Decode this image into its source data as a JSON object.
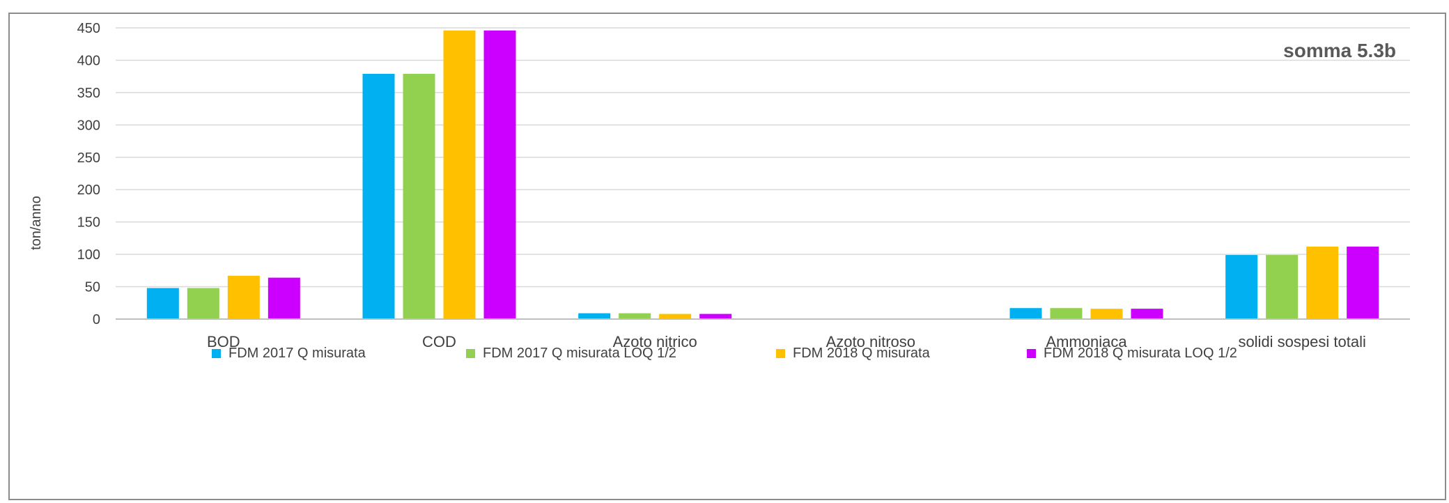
{
  "chart_data": {
    "type": "bar",
    "title": "",
    "xlabel": "",
    "ylabel": "ton/anno",
    "annotation": "somma 5.3b",
    "ylim": [
      0,
      450
    ],
    "yticks": [
      0,
      50,
      100,
      150,
      200,
      250,
      300,
      350,
      400,
      450
    ],
    "grid": true,
    "legend_position": "bottom",
    "categories": [
      "BOD",
      "COD",
      "Azoto nitrico",
      "Azoto nitroso",
      "Ammoniaca",
      "solidi sospesi totali"
    ],
    "series": [
      {
        "name": "FDM 2017 Q misurata",
        "color": "#00b0f0",
        "values": [
          48,
          379,
          9,
          0,
          17,
          99
        ]
      },
      {
        "name": "FDM 2017 Q misurata LOQ 1/2",
        "color": "#92d050",
        "values": [
          48,
          379,
          9,
          0,
          17,
          99
        ]
      },
      {
        "name": "FDM 2018 Q misurata",
        "color": "#ffc000",
        "values": [
          67,
          446,
          8,
          0,
          16,
          112
        ]
      },
      {
        "name": "FDM 2018 Q misurata  LOQ 1/2",
        "color": "#cc00ff",
        "values": [
          64,
          446,
          8,
          0,
          16,
          112
        ]
      }
    ]
  }
}
